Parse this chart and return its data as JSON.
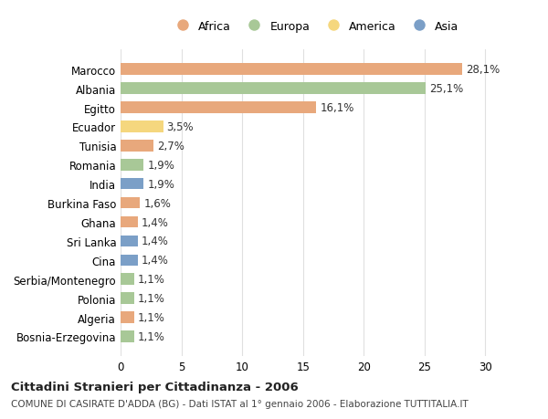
{
  "countries": [
    "Bosnia-Erzegovina",
    "Algeria",
    "Polonia",
    "Serbia/Montenegro",
    "Cina",
    "Sri Lanka",
    "Ghana",
    "Burkina Faso",
    "India",
    "Romania",
    "Tunisia",
    "Ecuador",
    "Egitto",
    "Albania",
    "Marocco"
  ],
  "values": [
    1.1,
    1.1,
    1.1,
    1.1,
    1.4,
    1.4,
    1.4,
    1.6,
    1.9,
    1.9,
    2.7,
    3.5,
    16.1,
    25.1,
    28.1
  ],
  "labels": [
    "1,1%",
    "1,1%",
    "1,1%",
    "1,1%",
    "1,4%",
    "1,4%",
    "1,4%",
    "1,6%",
    "1,9%",
    "1,9%",
    "2,7%",
    "3,5%",
    "16,1%",
    "25,1%",
    "28,1%"
  ],
  "continents": [
    "Europa",
    "Africa",
    "Europa",
    "Europa",
    "Asia",
    "Asia",
    "Africa",
    "Africa",
    "Asia",
    "Europa",
    "Africa",
    "America",
    "Africa",
    "Europa",
    "Africa"
  ],
  "colors": {
    "Africa": "#E8A87C",
    "Europa": "#A8C897",
    "America": "#F5D77E",
    "Asia": "#7B9FC7"
  },
  "legend_order": [
    "Africa",
    "Europa",
    "America",
    "Asia"
  ],
  "title": "Cittadini Stranieri per Cittadinanza - 2006",
  "subtitle": "COMUNE DI CASIRATE D'ADDA (BG) - Dati ISTAT al 1° gennaio 2006 - Elaborazione TUTTITALIA.IT",
  "xlim": [
    0,
    32
  ],
  "xticks": [
    0,
    5,
    10,
    15,
    20,
    25,
    30
  ],
  "bg_color": "#ffffff",
  "grid_color": "#e0e0e0"
}
